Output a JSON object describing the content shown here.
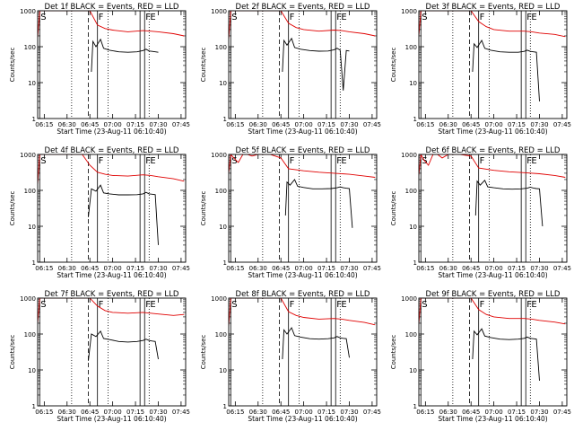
{
  "chart_data": {
    "type": "line",
    "y_scale": "log",
    "ylim": [
      1,
      1000
    ],
    "y_ticks": [
      {
        "value": 1,
        "label": "1"
      },
      {
        "value": 10,
        "label": "10"
      },
      {
        "value": 100,
        "label": "100"
      },
      {
        "value": 1000,
        "label": "1000"
      }
    ],
    "xlim": [
      "06:10:40",
      "07:48:00"
    ],
    "x_ticks": [
      "06:15",
      "06:30",
      "06:45",
      "07:00",
      "07:15",
      "07:30",
      "07:45"
    ],
    "ylabel": "Counts/sec",
    "xlabel": "Start Time (23-Aug-11 06:10:40)",
    "colors": {
      "events": "#000000",
      "lld": "#e00000"
    },
    "markers": [
      {
        "label": "S",
        "time": "06:12:00",
        "style": "solid"
      },
      {
        "label": "",
        "time": "06:33:00",
        "style": "dotted"
      },
      {
        "label": "",
        "time": "06:44:00",
        "style": "dashed"
      },
      {
        "label": "F",
        "time": "06:50:00",
        "style": "solid"
      },
      {
        "label": "",
        "time": "06:57:00",
        "style": "dotted"
      },
      {
        "label": "",
        "time": "07:18:00",
        "style": "solid"
      },
      {
        "label": "F",
        "time": "07:21:00",
        "style": "solid"
      },
      {
        "label": "E",
        "time": "07:24:00",
        "style": "dotted"
      }
    ],
    "panels": [
      {
        "title": "Det 1f BLACK = Events, RED = LLD",
        "series": [
          {
            "name": "Events",
            "color": "#000000",
            "x": [
              "06:46:00",
              "06:47:00",
              "06:49:00",
              "06:52:00",
              "06:54:00",
              "06:58:00",
              "07:04:00",
              "07:10:00",
              "07:16:00",
              "07:20:00",
              "07:22:00",
              "07:24:00",
              "07:26:00",
              "07:28:00",
              "07:30:00"
            ],
            "y": [
              20,
              140,
              100,
              160,
              90,
              80,
              72,
              70,
              72,
              78,
              85,
              76,
              74,
              72,
              70
            ]
          },
          {
            "name": "LLD",
            "color": "#e00000",
            "x": [
              "06:10:40",
              "06:12:00",
              "06:15:00",
              "06:18:00",
              "06:22:00",
              "06:30:00",
              "06:40:00",
              "06:45:00",
              "06:50:00",
              "06:55:00",
              "07:00:00",
              "07:10:00",
              "07:20:00",
              "07:25:00",
              "07:30:00",
              "07:40:00",
              "07:47:00"
            ],
            "y": [
              180,
              1000,
              1000,
              1000,
              1000,
              1000,
              1000,
              1000,
              400,
              320,
              290,
              260,
              280,
              270,
              260,
              230,
              200
            ]
          }
        ]
      },
      {
        "title": "Det 2f BLACK = Events, RED = LLD",
        "series": [
          {
            "name": "Events",
            "color": "#000000",
            "x": [
              "06:46:00",
              "06:47:00",
              "06:49:00",
              "06:52:00",
              "06:54:00",
              "06:58:00",
              "07:04:00",
              "07:10:00",
              "07:16:00",
              "07:20:00",
              "07:22:00",
              "07:24:00",
              "07:26:00",
              "07:28:00",
              "07:30:00"
            ],
            "y": [
              20,
              150,
              110,
              170,
              95,
              85,
              78,
              75,
              76,
              82,
              90,
              80,
              6,
              78,
              76
            ]
          },
          {
            "name": "LLD",
            "color": "#e00000",
            "x": [
              "06:10:40",
              "06:12:00",
              "06:15:00",
              "06:18:00",
              "06:22:00",
              "06:30:00",
              "06:40:00",
              "06:45:00",
              "06:50:00",
              "06:55:00",
              "07:00:00",
              "07:10:00",
              "07:20:00",
              "07:25:00",
              "07:30:00",
              "07:40:00",
              "07:47:00"
            ],
            "y": [
              160,
              1000,
              1000,
              1000,
              1000,
              1000,
              1000,
              1000,
              450,
              340,
              300,
              270,
              290,
              280,
              260,
              230,
              200
            ]
          }
        ]
      },
      {
        "title": "Det 3f BLACK = Events, RED = LLD",
        "series": [
          {
            "name": "Events",
            "color": "#000000",
            "x": [
              "06:46:00",
              "06:47:00",
              "06:49:00",
              "06:52:00",
              "06:54:00",
              "06:58:00",
              "07:04:00",
              "07:10:00",
              "07:16:00",
              "07:20:00",
              "07:22:00",
              "07:24:00",
              "07:26:00",
              "07:28:00",
              "07:30:00"
            ],
            "y": [
              20,
              120,
              95,
              150,
              90,
              80,
              72,
              70,
              70,
              74,
              80,
              74,
              72,
              70,
              3
            ]
          },
          {
            "name": "LLD",
            "color": "#e00000",
            "x": [
              "06:10:40",
              "06:12:00",
              "06:15:00",
              "06:18:00",
              "06:22:00",
              "06:30:00",
              "06:40:00",
              "06:45:00",
              "06:50:00",
              "06:55:00",
              "07:00:00",
              "07:10:00",
              "07:20:00",
              "07:25:00",
              "07:30:00",
              "07:40:00",
              "07:47:00"
            ],
            "y": [
              200,
              1000,
              1000,
              1000,
              1000,
              1000,
              1000,
              1000,
              500,
              360,
              300,
              270,
              270,
              260,
              240,
              220,
              190
            ]
          }
        ]
      },
      {
        "title": "Det 4f BLACK = Events, RED = LLD",
        "series": [
          {
            "name": "Events",
            "color": "#000000",
            "x": [
              "06:44:00",
              "06:46:00",
              "06:49:00",
              "06:52:00",
              "06:54:00",
              "06:58:00",
              "07:04:00",
              "07:10:00",
              "07:16:00",
              "07:20:00",
              "07:22:00",
              "07:24:00",
              "07:26:00",
              "07:28:00",
              "07:30:00"
            ],
            "y": [
              18,
              110,
              95,
              140,
              85,
              80,
              75,
              75,
              76,
              80,
              88,
              80,
              78,
              76,
              3
            ]
          },
          {
            "name": "LLD",
            "color": "#e00000",
            "x": [
              "06:10:40",
              "06:12:00",
              "06:15:00",
              "06:18:00",
              "06:22:00",
              "06:30:00",
              "06:40:00",
              "06:45:00",
              "06:50:00",
              "06:55:00",
              "07:00:00",
              "07:10:00",
              "07:20:00",
              "07:25:00",
              "07:30:00",
              "07:40:00",
              "07:47:00"
            ],
            "y": [
              150,
              1000,
              1000,
              1000,
              1000,
              1000,
              1000,
              500,
              320,
              280,
              260,
              250,
              270,
              260,
              240,
              210,
              180
            ]
          }
        ]
      },
      {
        "title": "Det 5f BLACK = Events, RED = LLD",
        "series": [
          {
            "name": "Events",
            "color": "#000000",
            "x": [
              "06:48:00",
              "06:49:00",
              "06:51:00",
              "06:54:00",
              "06:56:00",
              "07:00:00",
              "07:06:00",
              "07:12:00",
              "07:18:00",
              "07:22:00",
              "07:24:00",
              "07:26:00",
              "07:28:00",
              "07:30:00",
              "07:32:00"
            ],
            "y": [
              20,
              170,
              140,
              200,
              130,
              120,
              110,
              110,
              112,
              118,
              125,
              118,
              115,
              112,
              9
            ]
          },
          {
            "name": "LLD",
            "color": "#e00000",
            "x": [
              "06:10:40",
              "06:12:00",
              "06:14:00",
              "06:17:00",
              "06:20:00",
              "06:23:00",
              "06:26:00",
              "06:30:00",
              "06:38:00",
              "06:45:00",
              "06:50:00",
              "07:00:00",
              "07:10:00",
              "07:20:00",
              "07:30:00",
              "07:40:00",
              "07:47:00"
            ],
            "y": [
              300,
              1000,
              800,
              600,
              1000,
              1000,
              900,
              1000,
              1000,
              800,
              400,
              350,
              320,
              300,
              280,
              250,
              230
            ]
          }
        ]
      },
      {
        "title": "Det 6f BLACK = Events, RED = LLD",
        "series": [
          {
            "name": "Events",
            "color": "#000000",
            "x": [
              "06:48:00",
              "06:49:00",
              "06:51:00",
              "06:54:00",
              "06:56:00",
              "07:00:00",
              "07:06:00",
              "07:12:00",
              "07:18:00",
              "07:22:00",
              "07:24:00",
              "07:26:00",
              "07:28:00",
              "07:30:00",
              "07:32:00"
            ],
            "y": [
              20,
              180,
              140,
              190,
              125,
              118,
              110,
              108,
              110,
              115,
              122,
              116,
              112,
              110,
              10
            ]
          },
          {
            "name": "LLD",
            "color": "#e00000",
            "x": [
              "06:10:40",
              "06:12:00",
              "06:14:00",
              "06:17:00",
              "06:20:00",
              "06:23:00",
              "06:26:00",
              "06:30:00",
              "06:38:00",
              "06:45:00",
              "06:50:00",
              "07:00:00",
              "07:10:00",
              "07:20:00",
              "07:30:00",
              "07:40:00",
              "07:47:00"
            ],
            "y": [
              260,
              1000,
              700,
              500,
              1000,
              1000,
              800,
              1000,
              1000,
              900,
              420,
              360,
              330,
              310,
              290,
              260,
              230
            ]
          }
        ]
      },
      {
        "title": "Det 7f BLACK = Events, RED = LLD",
        "series": [
          {
            "name": "Events",
            "color": "#000000",
            "x": [
              "06:44:00",
              "06:46:00",
              "06:49:00",
              "06:52:00",
              "06:54:00",
              "06:58:00",
              "07:04:00",
              "07:10:00",
              "07:16:00",
              "07:20:00",
              "07:22:00",
              "07:24:00",
              "07:26:00",
              "07:28:00",
              "07:30:00"
            ],
            "y": [
              18,
              100,
              85,
              120,
              75,
              70,
              62,
              60,
              62,
              66,
              72,
              66,
              64,
              62,
              20
            ]
          },
          {
            "name": "LLD",
            "color": "#e00000",
            "x": [
              "06:10:40",
              "06:12:00",
              "06:15:00",
              "06:18:00",
              "06:22:00",
              "06:30:00",
              "06:40:00",
              "06:45:00",
              "06:50:00",
              "06:55:00",
              "07:00:00",
              "07:10:00",
              "07:20:00",
              "07:25:00",
              "07:30:00",
              "07:40:00",
              "07:47:00"
            ],
            "y": [
              200,
              1000,
              1000,
              1000,
              1000,
              1000,
              1000,
              1000,
              600,
              450,
              400,
              380,
              400,
              380,
              360,
              330,
              350
            ]
          }
        ]
      },
      {
        "title": "Det 8f BLACK = Events, RED = LLD",
        "series": [
          {
            "name": "Events",
            "color": "#000000",
            "x": [
              "06:46:00",
              "06:47:00",
              "06:49:00",
              "06:52:00",
              "06:54:00",
              "06:58:00",
              "07:04:00",
              "07:10:00",
              "07:16:00",
              "07:20:00",
              "07:22:00",
              "07:24:00",
              "07:26:00",
              "07:28:00",
              "07:30:00"
            ],
            "y": [
              20,
              130,
              100,
              150,
              90,
              82,
              74,
              72,
              74,
              78,
              85,
              78,
              76,
              74,
              22
            ]
          },
          {
            "name": "LLD",
            "color": "#e00000",
            "x": [
              "06:10:40",
              "06:12:00",
              "06:15:00",
              "06:18:00",
              "06:22:00",
              "06:30:00",
              "06:40:00",
              "06:45:00",
              "06:50:00",
              "06:55:00",
              "07:00:00",
              "07:10:00",
              "07:20:00",
              "07:25:00",
              "07:30:00",
              "07:40:00",
              "07:47:00"
            ],
            "y": [
              170,
              1000,
              1000,
              1000,
              1000,
              1000,
              1000,
              1000,
              420,
              330,
              290,
              260,
              270,
              260,
              240,
              210,
              180
            ]
          }
        ]
      },
      {
        "title": "Det 9f BLACK = Events, RED = LLD",
        "series": [
          {
            "name": "Events",
            "color": "#000000",
            "x": [
              "06:46:00",
              "06:47:00",
              "06:49:00",
              "06:52:00",
              "06:54:00",
              "06:58:00",
              "07:04:00",
              "07:10:00",
              "07:16:00",
              "07:20:00",
              "07:22:00",
              "07:24:00",
              "07:26:00",
              "07:28:00",
              "07:30:00"
            ],
            "y": [
              20,
              120,
              95,
              140,
              88,
              80,
              72,
              70,
              72,
              76,
              82,
              76,
              74,
              72,
              5
            ]
          },
          {
            "name": "LLD",
            "color": "#e00000",
            "x": [
              "06:10:40",
              "06:12:00",
              "06:15:00",
              "06:18:00",
              "06:22:00",
              "06:30:00",
              "06:40:00",
              "06:45:00",
              "06:50:00",
              "06:55:00",
              "07:00:00",
              "07:10:00",
              "07:20:00",
              "07:25:00",
              "07:30:00",
              "07:40:00",
              "07:47:00"
            ],
            "y": [
              190,
              1000,
              1000,
              1000,
              1000,
              1000,
              1000,
              1000,
              480,
              350,
              300,
              270,
              270,
              260,
              240,
              215,
              190
            ]
          }
        ]
      }
    ]
  }
}
